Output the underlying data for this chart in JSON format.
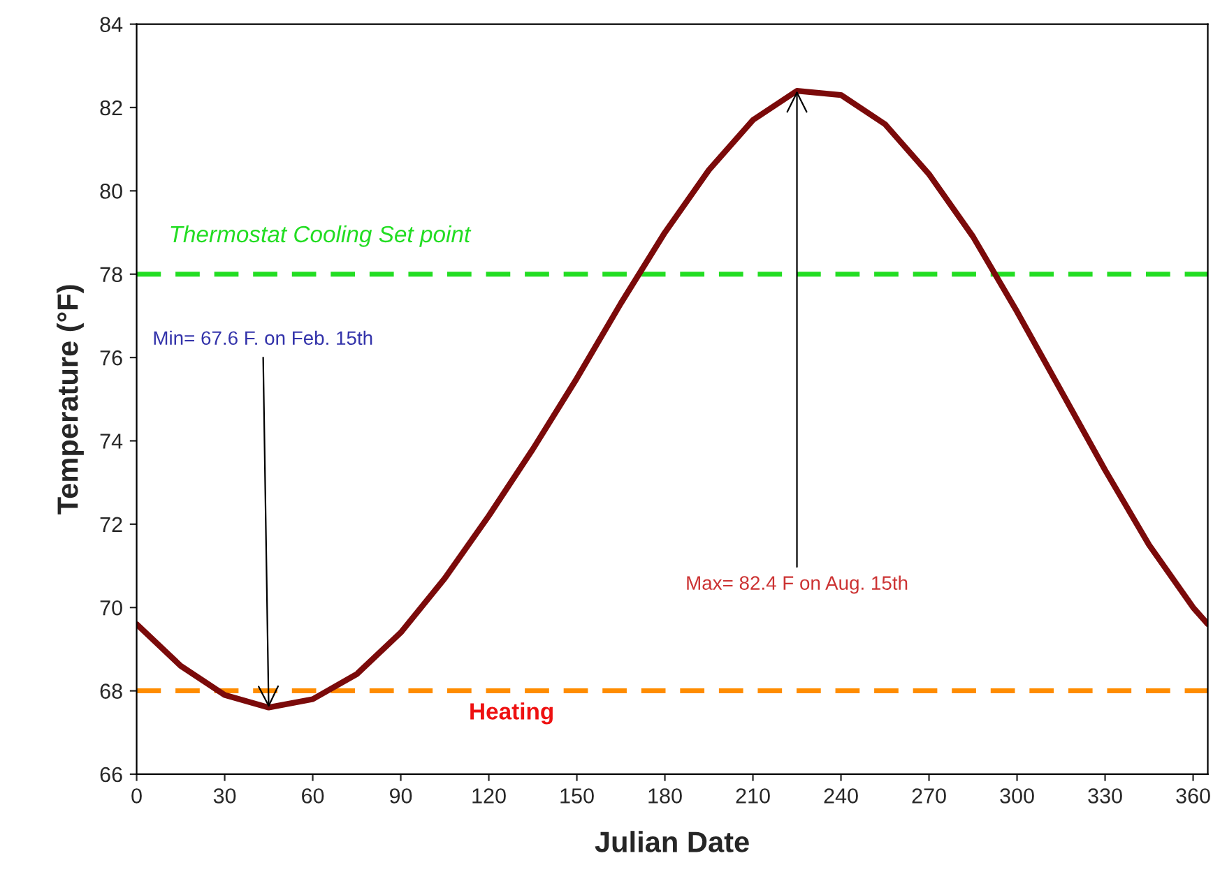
{
  "chart_data": {
    "type": "line",
    "xlabel": "Julian Date",
    "ylabel": "Temperature (°F)",
    "x": [
      0,
      15,
      30,
      45,
      60,
      75,
      90,
      105,
      120,
      135,
      150,
      165,
      180,
      195,
      210,
      225,
      240,
      255,
      270,
      285,
      300,
      315,
      330,
      345,
      360,
      365
    ],
    "series": [
      {
        "color": "#7b0a0a",
        "values": [
          69.6,
          68.6,
          67.9,
          67.6,
          67.8,
          68.4,
          69.4,
          70.7,
          72.2,
          73.8,
          75.5,
          77.3,
          79.0,
          80.5,
          81.7,
          82.4,
          82.3,
          81.6,
          80.4,
          78.9,
          77.1,
          75.2,
          73.3,
          71.5,
          70.0,
          69.6
        ]
      }
    ],
    "xlim": [
      0,
      365
    ],
    "xticks": [
      0,
      30,
      60,
      90,
      120,
      150,
      180,
      210,
      240,
      270,
      300,
      330,
      360
    ],
    "ylim": [
      66,
      84
    ],
    "yticks": [
      66,
      68,
      70,
      72,
      74,
      76,
      78,
      80,
      82,
      84
    ],
    "ref_lines": [
      {
        "axis": "y",
        "value": 78,
        "label": "Thermostat Cooling Set point",
        "color": "#22dd22",
        "line_style": "dashed"
      },
      {
        "axis": "y",
        "value": 68,
        "label": "Heating",
        "color": "#ff8c00",
        "line_style": "dashed"
      }
    ],
    "annotations": [
      {
        "text": "Min= 67.6 F. on Feb. 15th",
        "x": 45,
        "y": 67.6
      },
      {
        "text": "Max= 82.4 F on Aug. 15th",
        "x": 225,
        "y": 82.4
      }
    ],
    "grid": false,
    "legend": false,
    "marker": "none",
    "line_style": "solid"
  }
}
